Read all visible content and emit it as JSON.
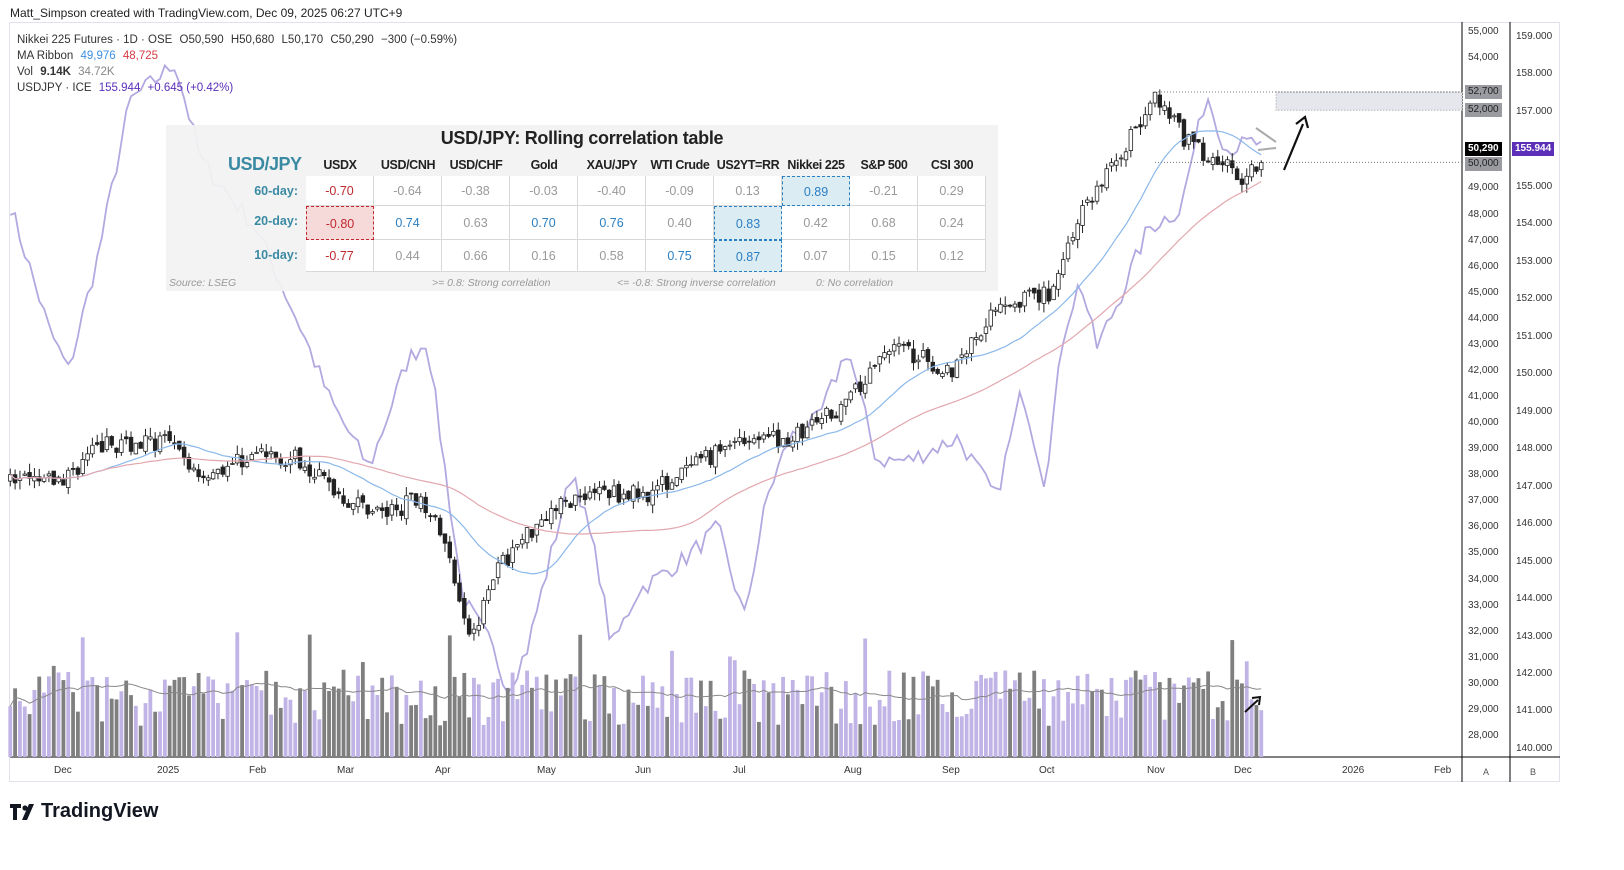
{
  "credit": "Matt_Simpson created with TradingView.com, Dec 09, 2025 06:27 UTC+9",
  "legend": {
    "symbol": "Nikkei 225 Futures · 1D · OSE",
    "open": "O50,590",
    "high": "H50,680",
    "low": "L50,170",
    "close": "C50,290",
    "change": "−300 (−0.59%)",
    "ma_label": "MA Ribbon",
    "ma1": "49,976",
    "ma2": "48,725",
    "vol_label": "Vol",
    "vol": "9.14K",
    "vol_ma": "34.72K",
    "usdjpy_label": "USDJPY · ICE",
    "usdjpy_price": "155.944",
    "usdjpy_change": "+0.645 (+0.42%)"
  },
  "table": {
    "title": "USD/JPY: Rolling correlation table",
    "corner": "USD/JPY",
    "columns": [
      "USDX",
      "USD/CNH",
      "USD/CHF",
      "Gold",
      "XAU/JPY",
      "WTI Crude",
      "US2YT=RR",
      "Nikkei 225",
      "S&P 500",
      "CSI 300"
    ],
    "rows": [
      {
        "label": "60-day:",
        "values": [
          "-0.70",
          "-0.64",
          "-0.38",
          "-0.03",
          "-0.40",
          "-0.09",
          "0.13",
          "0.89",
          "-0.21",
          "0.29"
        ]
      },
      {
        "label": "20-day:",
        "values": [
          "-0.80",
          "0.74",
          "0.63",
          "0.70",
          "0.76",
          "0.40",
          "0.83",
          "0.42",
          "0.68",
          "0.24"
        ]
      },
      {
        "label": "10-day:",
        "values": [
          "-0.77",
          "0.44",
          "0.66",
          "0.16",
          "0.58",
          "0.75",
          "0.87",
          "0.07",
          "0.15",
          "0.12"
        ]
      }
    ],
    "source": "Source: LSEG",
    "note1": ">= 0.8: Strong correlation",
    "note2": "<= -0.8: Strong inverse correlation",
    "note3": "0: No correlation"
  },
  "axes": {
    "time_labels": [
      "Dec",
      "2025",
      "Feb",
      "Mar",
      "Apr",
      "May",
      "Jun",
      "Jul",
      "Aug",
      "Sep",
      "Oct",
      "Nov",
      "Dec",
      "2026",
      "Feb"
    ],
    "scale_buttons": [
      "A",
      "B"
    ]
  },
  "price_tags": {
    "level_high": "52,700",
    "level_mid": "52,000",
    "level_low": "50,000",
    "last": "50,290",
    "usdjpy_last": "155.944"
  },
  "colors": {
    "usdjpy": "#b4a8e0",
    "ma_fast": "#8ab8ea",
    "ma_slow": "#e2a7ae",
    "usdjpy_tag": "#5b2fb8",
    "vol_up": "#c0b3e6",
    "vol_down": "#7f7f80",
    "positive": "#2b7fc3",
    "negative": "#c0282e"
  },
  "logo": "TradingView",
  "chart_data": {
    "type": "candlestick+line",
    "nikkei_axis": {
      "min": 28000,
      "max": 55000,
      "step": 1000
    },
    "usdjpy_axis": {
      "min": 140,
      "max": 159,
      "step": 1
    },
    "nikkei_close": [
      [
        "2024-11-15",
        37700
      ],
      [
        "2024-12-01",
        37800
      ],
      [
        "2024-12-13",
        39150
      ],
      [
        "2025-01-02",
        39300
      ],
      [
        "2025-01-13",
        38000
      ],
      [
        "2025-01-30",
        38800
      ],
      [
        "2025-02-13",
        38600
      ],
      [
        "2025-02-27",
        37050
      ],
      [
        "2025-03-12",
        36500
      ],
      [
        "2025-03-22",
        37250
      ],
      [
        "2025-03-29",
        35500
      ],
      [
        "2025-04-07",
        31700
      ],
      [
        "2025-04-12",
        34000
      ],
      [
        "2025-04-29",
        36500
      ],
      [
        "2025-05-13",
        37400
      ],
      [
        "2025-05-30",
        37250
      ],
      [
        "2025-06-13",
        38200
      ],
      [
        "2025-06-29",
        39500
      ],
      [
        "2025-07-14",
        39350
      ],
      [
        "2025-08-02",
        40900
      ],
      [
        "2025-08-14",
        43000
      ],
      [
        "2025-09-02",
        42000
      ],
      [
        "2025-09-17",
        44700
      ],
      [
        "2025-10-02",
        44900
      ],
      [
        "2025-10-12",
        48000
      ],
      [
        "2025-11-04",
        52400
      ],
      [
        "2025-11-15",
        50650
      ],
      [
        "2025-12-01",
        49500
      ],
      [
        "2025-12-08",
        50290
      ]
    ],
    "usdjpy_close": [
      [
        "2024-11-15",
        154.5
      ],
      [
        "2024-11-27",
        151.2
      ],
      [
        "2024-12-03",
        150.1
      ],
      [
        "2024-12-12",
        153.1
      ],
      [
        "2024-12-22",
        157.3
      ],
      [
        "2025-01-05",
        158.3
      ],
      [
        "2025-01-13",
        155.7
      ],
      [
        "2025-01-30",
        153.9
      ],
      [
        "2025-02-13",
        151.2
      ],
      [
        "2025-02-22",
        149.3
      ],
      [
        "2025-03-06",
        147.5
      ],
      [
        "2025-03-18",
        150.4
      ],
      [
        "2025-03-24",
        150.9
      ],
      [
        "2025-04-04",
        144.0
      ],
      [
        "2025-04-12",
        142.9
      ],
      [
        "2025-04-18",
        141.6
      ],
      [
        "2025-04-24",
        142.7
      ],
      [
        "2025-05-08",
        147.5
      ],
      [
        "2025-05-16",
        144.8
      ],
      [
        "2025-05-20",
        142.7
      ],
      [
        "2025-05-28",
        144.2
      ],
      [
        "2025-06-12",
        145.1
      ],
      [
        "2025-06-22",
        145.9
      ],
      [
        "2025-06-30",
        143.5
      ],
      [
        "2025-07-07",
        146.7
      ],
      [
        "2025-07-14",
        148.3
      ],
      [
        "2025-07-23",
        148.8
      ],
      [
        "2025-08-01",
        150.7
      ],
      [
        "2025-08-10",
        147.7
      ],
      [
        "2025-08-20",
        147.7
      ],
      [
        "2025-09-04",
        148.3
      ],
      [
        "2025-09-16",
        146.7
      ],
      [
        "2025-09-24",
        149.6
      ],
      [
        "2025-10-01",
        147.1
      ],
      [
        "2025-10-07",
        151.2
      ],
      [
        "2025-10-12",
        152.5
      ],
      [
        "2025-10-17",
        150.7
      ],
      [
        "2025-10-24",
        152.0
      ],
      [
        "2025-11-02",
        153.9
      ],
      [
        "2025-11-12",
        154.4
      ],
      [
        "2025-11-20",
        157.5
      ],
      [
        "2025-11-26",
        156.0
      ],
      [
        "2025-12-05",
        156.2
      ],
      [
        "2025-12-08",
        155.944
      ]
    ],
    "levels": [
      52700,
      52000,
      50000
    ]
  }
}
